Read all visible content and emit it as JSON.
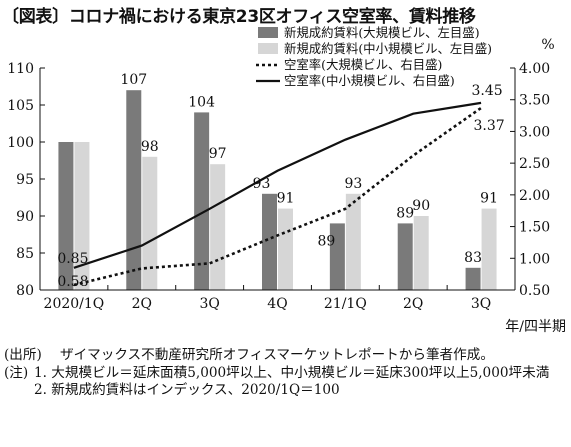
{
  "title": "〔図表〕コロナ禍における東京23区オフィス空室率、賃料推移",
  "chart_data": {
    "type": "bar",
    "categories": [
      "2020/1Q",
      "2Q",
      "3Q",
      "4Q",
      "21/1Q",
      "2Q",
      "3Q"
    ],
    "xlabel": "年/四半期",
    "y_left": {
      "range": [
        80,
        110
      ],
      "ticks": [
        "80",
        "85",
        "90",
        "95",
        "100",
        "105",
        "110"
      ]
    },
    "y_right": {
      "unit": "%",
      "range": [
        0.5,
        4.0
      ],
      "ticks": [
        "0.50",
        "1.00",
        "1.50",
        "2.00",
        "2.50",
        "3.00",
        "3.50",
        "4.00"
      ]
    },
    "series": [
      {
        "name": "新規成約賃料(大規模ビル、左目盛)",
        "type": "bar",
        "color": "#7a7a7a",
        "values": [
          100,
          107,
          104,
          93,
          89,
          89,
          83
        ],
        "labels": [
          "",
          "107",
          "104",
          "93",
          "89",
          "89",
          "83"
        ]
      },
      {
        "name": "新規成約賃料(中小規模ビル、左目盛)",
        "type": "bar",
        "color": "#d6d6d6",
        "values": [
          100,
          98,
          97,
          91,
          93,
          90,
          91
        ],
        "labels": [
          "",
          "98",
          "97",
          "91",
          "93",
          "90",
          "91"
        ]
      },
      {
        "name": "空室率(大規模ビル、右目盛)",
        "type": "line",
        "style": "dotted",
        "values": [
          0.58,
          0.84,
          0.92,
          1.36,
          1.78,
          2.62,
          3.37
        ],
        "labels": [
          "0.58",
          "",
          "",
          "",
          "",
          "",
          "3.37"
        ]
      },
      {
        "name": "空室率(中小規模ビル、右目盛)",
        "type": "line",
        "style": "solid",
        "values": [
          0.85,
          1.2,
          1.78,
          2.38,
          2.87,
          3.28,
          3.45
        ],
        "labels": [
          "0.85",
          "",
          "",
          "",
          "",
          "",
          "3.45"
        ]
      }
    ]
  },
  "notes": {
    "source_label": "(出所)",
    "source_text": "ザイマックス不動産研究所オフィスマーケットレポートから筆者作成。",
    "note_label": "(注)",
    "note1": "1. 大規模ビル＝延床面積5,000坪以上、中小規模ビル＝延床300坪以上5,000坪未満",
    "note2": "2. 新規成約賃料はインデックス、2020/1Q＝100"
  }
}
